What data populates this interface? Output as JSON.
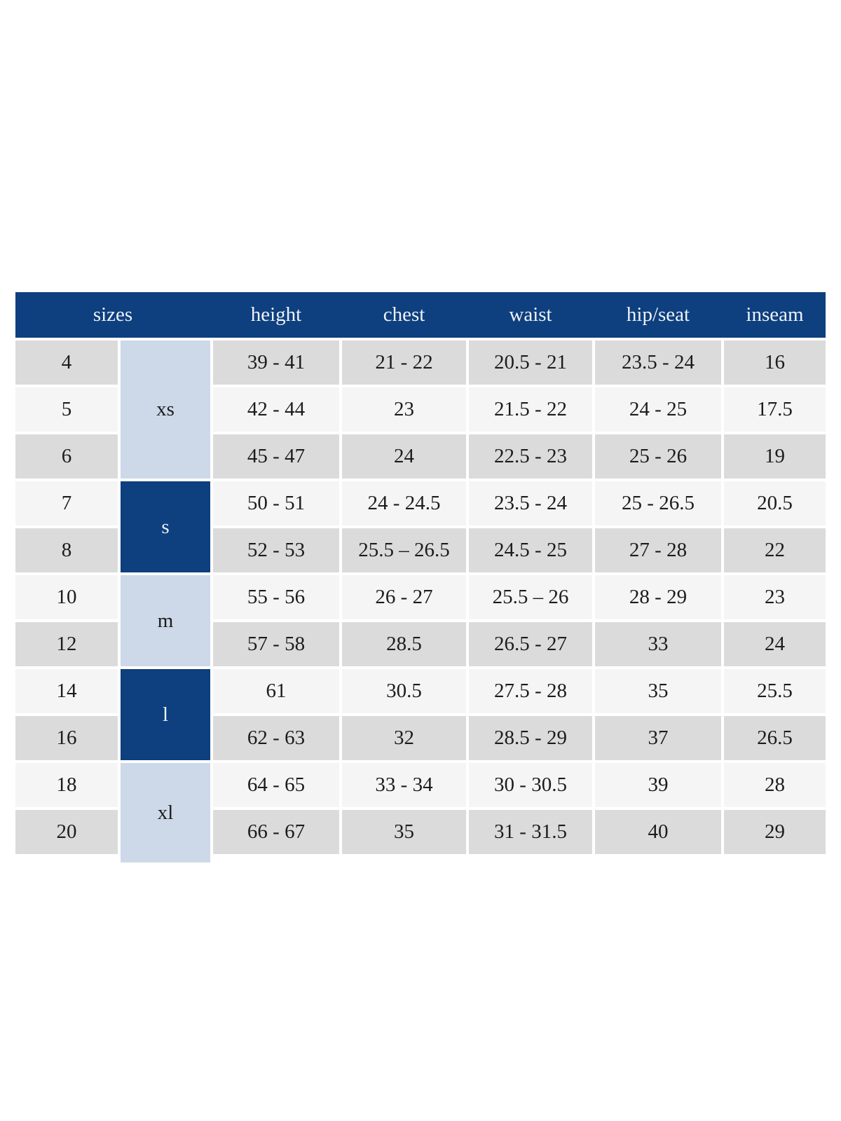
{
  "colors": {
    "navy": "#0e3f7e",
    "group-light": "#cdd9e8",
    "row-gray": "#dbdbdb",
    "row-lite": "#f5f5f5",
    "body-text": "#1c1c1c",
    "header-text": "#eef2f8"
  },
  "table": {
    "header": {
      "sizes": "sizes",
      "height": "height",
      "chest": "chest",
      "waist": "waist",
      "hip_seat": "hip/seat",
      "inseam": "inseam"
    },
    "groups": [
      {
        "label": "xs"
      },
      {
        "label": "s"
      },
      {
        "label": "m"
      },
      {
        "label": "l"
      },
      {
        "label": "xl"
      }
    ],
    "rows": [
      {
        "size": "4",
        "height": "39 - 41",
        "chest": "21 - 22",
        "waist": "20.5 - 21",
        "hip_seat": "23.5 - 24",
        "inseam": "16"
      },
      {
        "size": "5",
        "height": "42 - 44",
        "chest": "23",
        "waist": "21.5 - 22",
        "hip_seat": "24 - 25",
        "inseam": "17.5"
      },
      {
        "size": "6",
        "height": "45 - 47",
        "chest": "24",
        "waist": "22.5 - 23",
        "hip_seat": "25 - 26",
        "inseam": "19"
      },
      {
        "size": "7",
        "height": "50 - 51",
        "chest": "24 - 24.5",
        "waist": "23.5 - 24",
        "hip_seat": "25 - 26.5",
        "inseam": "20.5"
      },
      {
        "size": "8",
        "height": "52 - 53",
        "chest": "25.5 – 26.5",
        "waist": "24.5 - 25",
        "hip_seat": "27 - 28",
        "inseam": "22"
      },
      {
        "size": "10",
        "height": "55 - 56",
        "chest": "26 - 27",
        "waist": "25.5 – 26",
        "hip_seat": "28 - 29",
        "inseam": "23"
      },
      {
        "size": "12",
        "height": "57 - 58",
        "chest": "28.5",
        "waist": "26.5 - 27",
        "hip_seat": "33",
        "inseam": "24"
      },
      {
        "size": "14",
        "height": "61",
        "chest": "30.5",
        "waist": "27.5 - 28",
        "hip_seat": "35",
        "inseam": "25.5"
      },
      {
        "size": "16",
        "height": "62 - 63",
        "chest": "32",
        "waist": "28.5 - 29",
        "hip_seat": "37",
        "inseam": "26.5"
      },
      {
        "size": "18",
        "height": "64 - 65",
        "chest": "33 - 34",
        "waist": "30 - 30.5",
        "hip_seat": "39",
        "inseam": "28"
      },
      {
        "size": "20",
        "height": "66 - 67",
        "chest": "35",
        "waist": "31 - 31.5",
        "hip_seat": "40",
        "inseam": "29"
      }
    ]
  }
}
